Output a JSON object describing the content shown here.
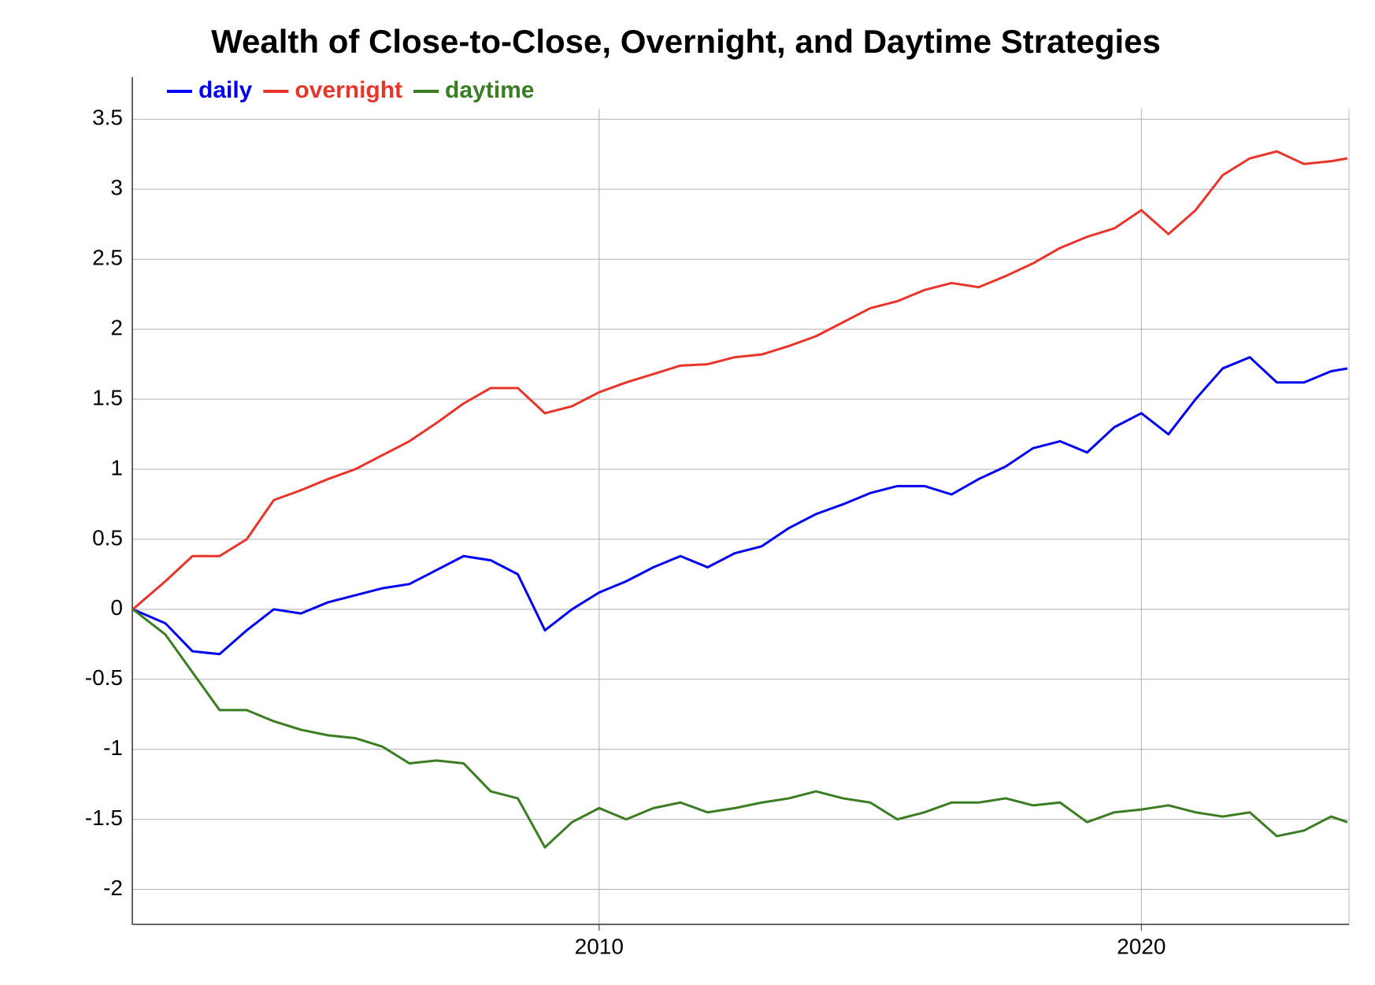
{
  "chart_data": {
    "type": "line",
    "title": "Wealth of Close-to-Close, Overnight, and Daytime Strategies",
    "x": [
      2001.4,
      2002,
      2002.5,
      2003,
      2003.5,
      2004,
      2004.5,
      2005,
      2005.5,
      2006,
      2006.5,
      2007,
      2007.5,
      2008,
      2008.5,
      2009,
      2009.5,
      2010,
      2010.5,
      2011,
      2011.5,
      2012,
      2012.5,
      2013,
      2013.5,
      2014,
      2014.5,
      2015,
      2015.5,
      2016,
      2016.5,
      2017,
      2017.5,
      2018,
      2018.5,
      2019,
      2019.5,
      2020,
      2020.5,
      2021,
      2021.5,
      2022,
      2022.5,
      2023,
      2023.5,
      2023.8
    ],
    "series": [
      {
        "name": "daily",
        "color": "#0000ee",
        "values": [
          0,
          -0.1,
          -0.3,
          -0.32,
          -0.15,
          0,
          -0.03,
          0.05,
          0.1,
          0.15,
          0.18,
          0.28,
          0.38,
          0.35,
          0.25,
          -0.15,
          0.0,
          0.12,
          0.2,
          0.3,
          0.38,
          0.3,
          0.4,
          0.45,
          0.58,
          0.68,
          0.75,
          0.83,
          0.88,
          0.88,
          0.82,
          0.93,
          1.02,
          1.15,
          1.2,
          1.12,
          1.3,
          1.4,
          1.25,
          1.5,
          1.72,
          1.8,
          1.62,
          1.62,
          1.7,
          1.72
        ]
      },
      {
        "name": "overnight",
        "color": "#e8352a",
        "values": [
          0,
          0.2,
          0.38,
          0.38,
          0.5,
          0.78,
          0.85,
          0.93,
          1.0,
          1.1,
          1.2,
          1.33,
          1.47,
          1.58,
          1.58,
          1.4,
          1.45,
          1.55,
          1.62,
          1.68,
          1.74,
          1.75,
          1.8,
          1.82,
          1.88,
          1.95,
          2.05,
          2.15,
          2.2,
          2.28,
          2.33,
          2.3,
          2.38,
          2.47,
          2.58,
          2.66,
          2.72,
          2.85,
          2.68,
          2.85,
          3.1,
          3.22,
          3.27,
          3.18,
          3.2,
          3.22
        ]
      },
      {
        "name": "daytime",
        "color": "#3a7d22",
        "values": [
          0,
          -0.18,
          -0.45,
          -0.72,
          -0.72,
          -0.8,
          -0.86,
          -0.9,
          -0.92,
          -0.98,
          -1.1,
          -1.08,
          -1.1,
          -1.3,
          -1.35,
          -1.7,
          -1.52,
          -1.42,
          -1.5,
          -1.42,
          -1.38,
          -1.45,
          -1.42,
          -1.38,
          -1.35,
          -1.3,
          -1.35,
          -1.38,
          -1.5,
          -1.45,
          -1.38,
          -1.38,
          -1.35,
          -1.4,
          -1.38,
          -1.52,
          -1.45,
          -1.43,
          -1.4,
          -1.45,
          -1.48,
          -1.45,
          -1.62,
          -1.58,
          -1.48,
          -1.52
        ]
      }
    ],
    "xlim": [
      2001.39,
      2023.83
    ],
    "xticks": [
      2010,
      2020
    ],
    "ylim": [
      -2.25,
      3.8
    ],
    "yticks": [
      3.5,
      3,
      2.5,
      2,
      1.5,
      1,
      0.5,
      0,
      -0.5,
      -1,
      -1.5,
      -2
    ],
    "grid": true,
    "legend": "top-left"
  }
}
